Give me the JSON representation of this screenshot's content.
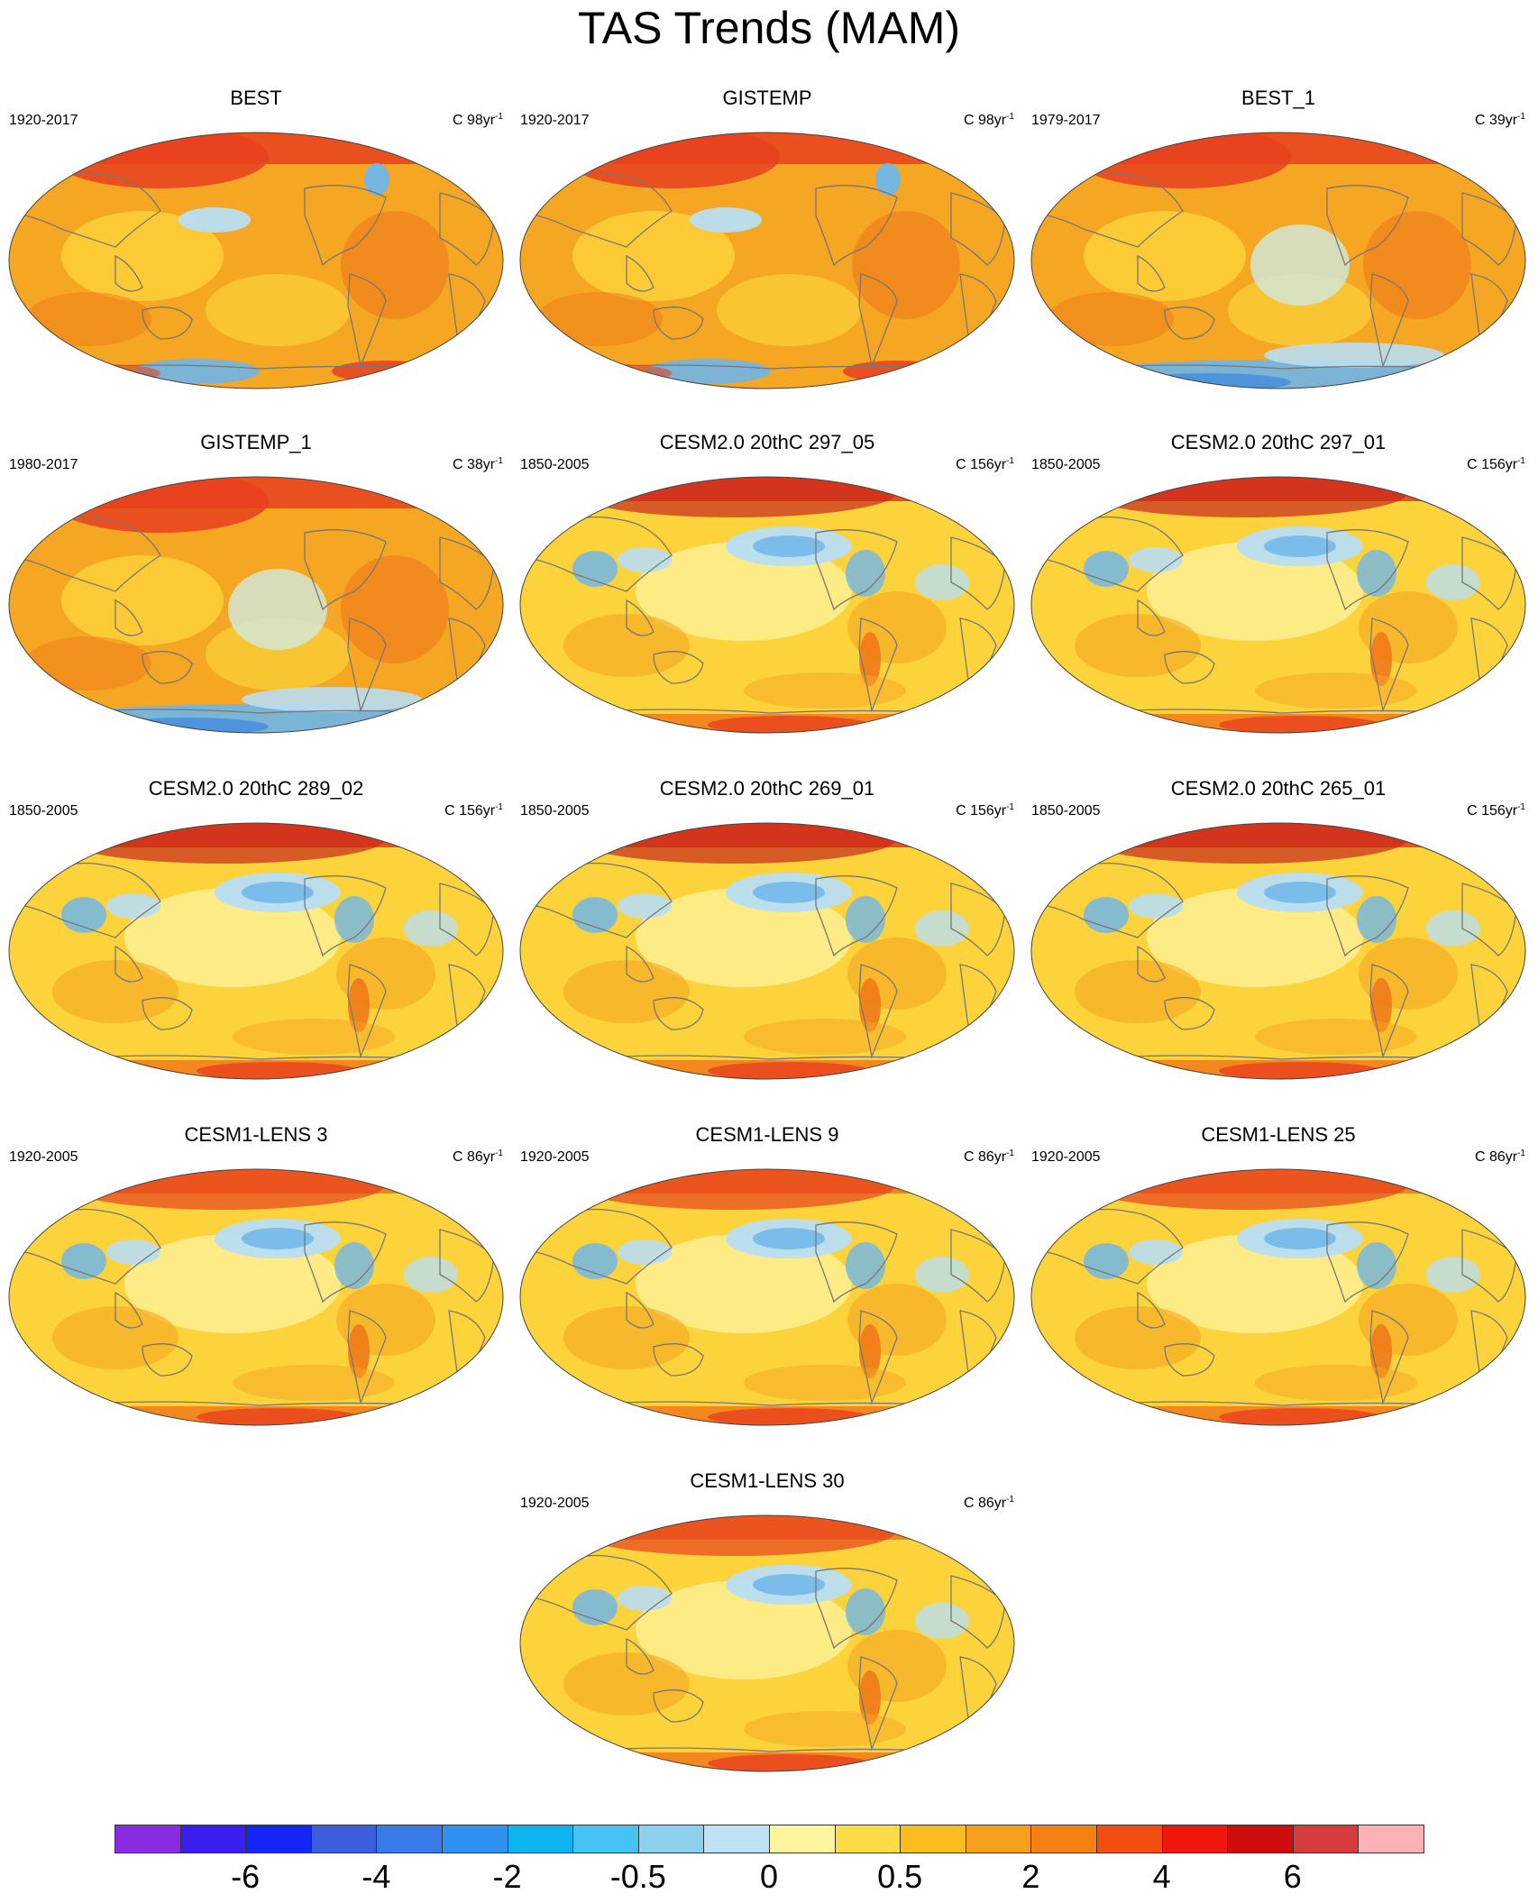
{
  "title": "TAS Trends (MAM)",
  "palette": {
    "sea_base": "#fcd33a",
    "strong_orange": "#f5a623",
    "deep_orange": "#f07a1a",
    "red": "#e8411e",
    "dark_red": "#c8281b",
    "light_yellow": "#fdf29a",
    "light_blue": "#b8def3",
    "mid_blue": "#6fb6ea",
    "blue": "#3b86e0",
    "coast": "#777777"
  },
  "panels": [
    {
      "title": "BEST",
      "period": "1920-2017",
      "units_prefix": "C 98yr",
      "units_exp": "-1",
      "base": "orange",
      "polar_band": "red",
      "blue_patch": "small"
    },
    {
      "title": "GISTEMP",
      "period": "1920-2017",
      "units_prefix": "C 98yr",
      "units_exp": "-1",
      "base": "orange",
      "polar_band": "red",
      "blue_patch": "small"
    },
    {
      "title": "BEST_1",
      "period": "1979-2017",
      "units_prefix": "C 39yr",
      "units_exp": "-1",
      "base": "orange",
      "polar_band": "red",
      "blue_patch": "south"
    },
    {
      "title": "GISTEMP_1",
      "period": "1980-2017",
      "units_prefix": "C 38yr",
      "units_exp": "-1",
      "base": "orange",
      "polar_band": "red",
      "blue_patch": "south"
    },
    {
      "title": "CESM2.0 20thC 297_05",
      "period": "1850-2005",
      "units_prefix": "C 156yr",
      "units_exp": "-1",
      "base": "yellow",
      "polar_band": "red",
      "blue_patch": "north"
    },
    {
      "title": "CESM2.0 20thC 297_01",
      "period": "1850-2005",
      "units_prefix": "C 156yr",
      "units_exp": "-1",
      "base": "yellow",
      "polar_band": "red",
      "blue_patch": "north"
    },
    {
      "title": "CESM2.0 20thC 289_02",
      "period": "1850-2005",
      "units_prefix": "C 156yr",
      "units_exp": "-1",
      "base": "yellow",
      "polar_band": "red",
      "blue_patch": "north"
    },
    {
      "title": "CESM2.0 20thC 269_01",
      "period": "1850-2005",
      "units_prefix": "C 156yr",
      "units_exp": "-1",
      "base": "yellow",
      "polar_band": "red",
      "blue_patch": "north"
    },
    {
      "title": "CESM2.0 20thC 265_01",
      "period": "1850-2005",
      "units_prefix": "C 156yr",
      "units_exp": "-1",
      "base": "yellow",
      "polar_band": "red",
      "blue_patch": "north"
    },
    {
      "title": "CESM1-LENS 3",
      "period": "1920-2005",
      "units_prefix": "C 86yr",
      "units_exp": "-1",
      "base": "yellow",
      "polar_band": "orange",
      "blue_patch": "north"
    },
    {
      "title": "CESM1-LENS 9",
      "period": "1920-2005",
      "units_prefix": "C 86yr",
      "units_exp": "-1",
      "base": "yellow",
      "polar_band": "orange",
      "blue_patch": "north"
    },
    {
      "title": "CESM1-LENS 25",
      "period": "1920-2005",
      "units_prefix": "C 86yr",
      "units_exp": "-1",
      "base": "yellow",
      "polar_band": "orange",
      "blue_patch": "north"
    },
    {
      "title": "CESM1-LENS 30",
      "period": "1920-2005",
      "units_prefix": "C 86yr",
      "units_exp": "-1",
      "base": "yellow",
      "polar_band": "orange",
      "blue_patch": "north"
    }
  ],
  "colorbar": {
    "colors": [
      "#8a2be2",
      "#3a1ef0",
      "#1426f5",
      "#3b5edc",
      "#3a7ae6",
      "#2e93f0",
      "#0db4f2",
      "#45c3f2",
      "#8fd0ee",
      "#c0e2f5",
      "#fff59e",
      "#fedc45",
      "#f9bd1f",
      "#f5a11c",
      "#f57f12",
      "#f34d10",
      "#f0180c",
      "#d00d0d",
      "#d63c3c",
      "#fab2b6"
    ],
    "labels": [
      {
        "text": "-6",
        "boundary": 2
      },
      {
        "text": "-4",
        "boundary": 4
      },
      {
        "text": "-2",
        "boundary": 6
      },
      {
        "text": "-0.5",
        "boundary": 8
      },
      {
        "text": "0",
        "boundary": 10
      },
      {
        "text": "0.5",
        "boundary": 12
      },
      {
        "text": "2",
        "boundary": 14
      },
      {
        "text": "4",
        "boundary": 16
      },
      {
        "text": "6",
        "boundary": 18
      }
    ]
  }
}
